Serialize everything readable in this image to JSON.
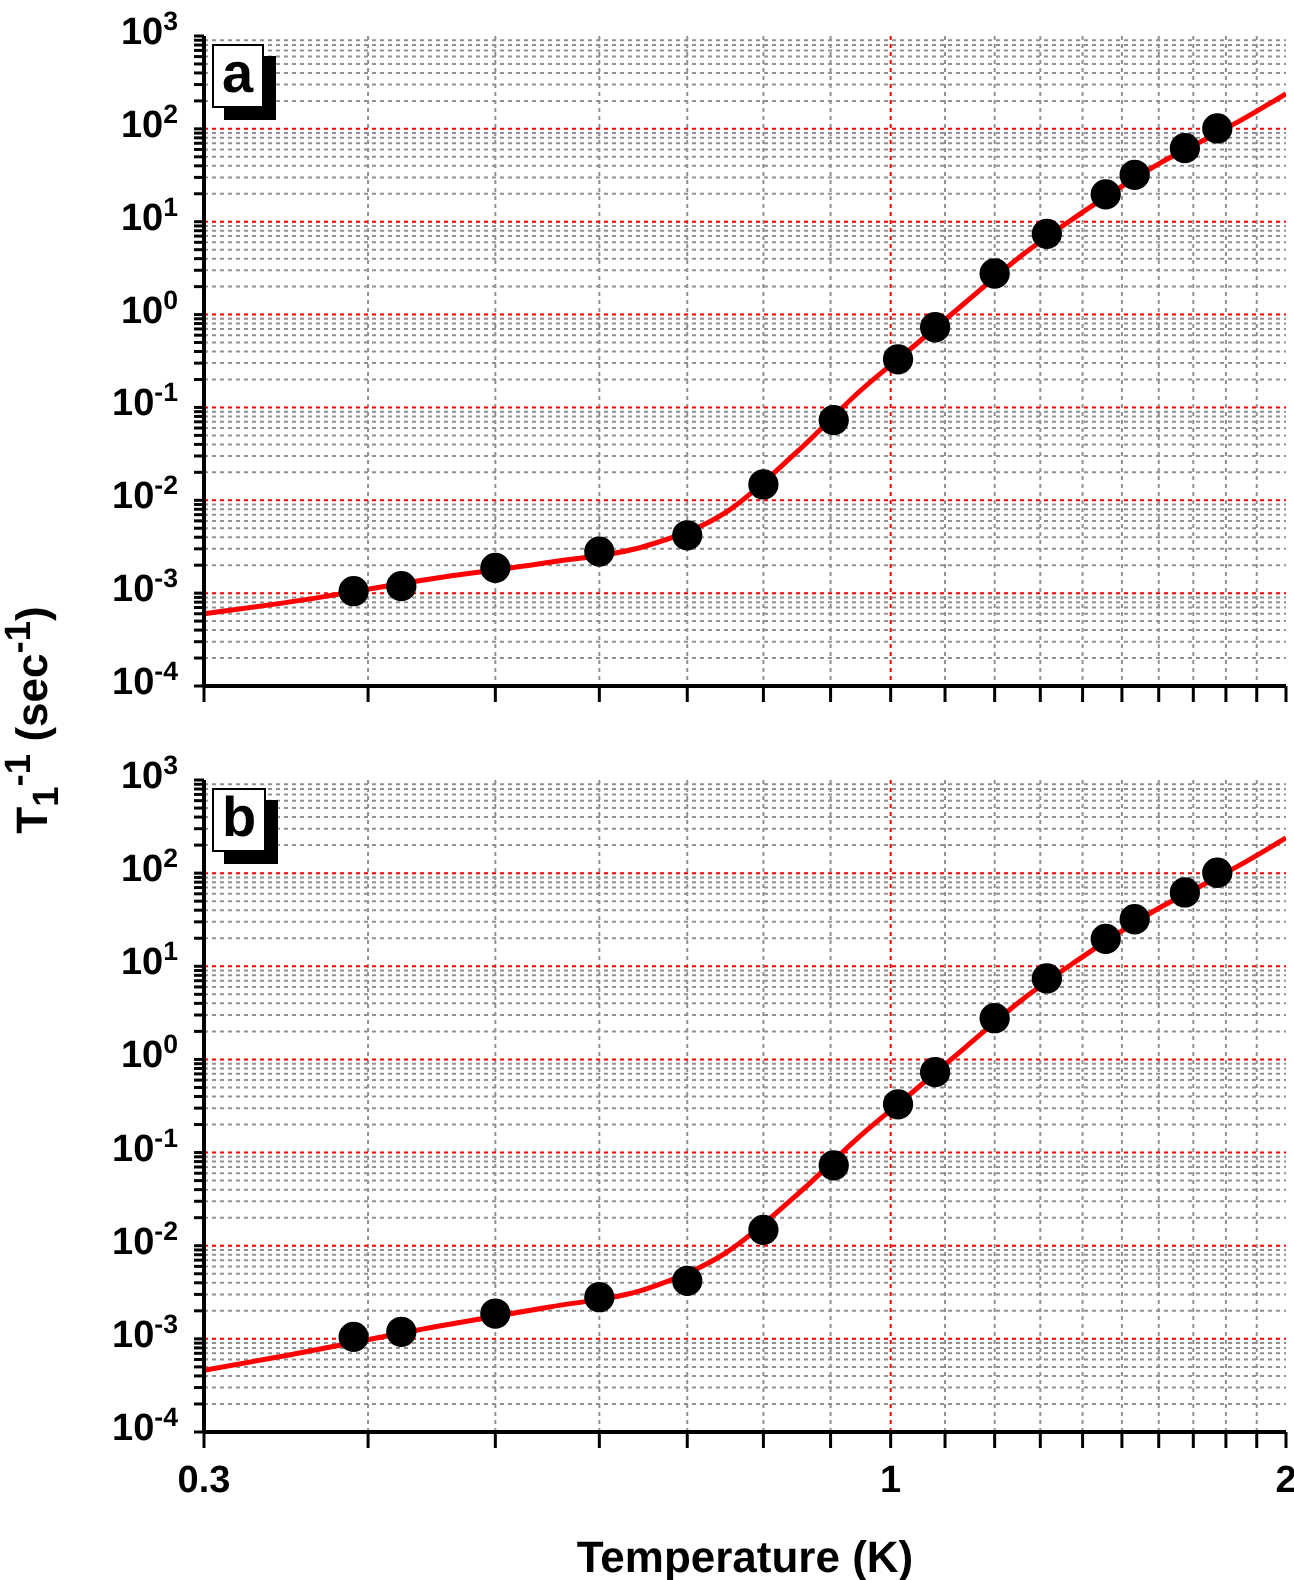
{
  "chart_data": [
    {
      "type": "scatter",
      "log": "xy",
      "grid": true,
      "tick_labels": "y",
      "annotations": [
        "a"
      ],
      "ylabel": "T$_{1}$$^{-1}$ (sec$^{-1}$)",
      "xlim": [
        0.3,
        2
      ],
      "xticks": [
        0.3,
        {
          "value": 0.4,
          "label": null
        },
        {
          "value": 0.5,
          "label": null
        },
        {
          "value": 0.6,
          "label": null
        },
        {
          "value": 0.7,
          "label": null
        },
        {
          "value": 0.8,
          "label": null
        },
        {
          "value": 0.9,
          "label": null
        },
        1,
        {
          "value": 1.1,
          "label": null
        },
        {
          "value": 1.2,
          "label": null
        },
        {
          "value": 1.3,
          "label": null
        },
        {
          "value": 1.4,
          "label": null
        },
        {
          "value": 1.5,
          "label": null
        },
        {
          "value": 1.6,
          "label": null
        },
        {
          "value": 1.7,
          "label": null
        },
        {
          "value": 1.8,
          "label": null
        },
        {
          "value": 1.9,
          "label": null
        },
        2
      ],
      "ylim": [
        0.0001,
        1000
      ],
      "yticks": [
        {
          "value": 0.0001,
          "label": "10$^{-4}$"
        },
        {
          "value": 0.0002,
          "label": null
        },
        {
          "value": 0.0003,
          "label": null
        },
        {
          "value": 0.0004,
          "label": null
        },
        {
          "value": 0.0005,
          "label": null
        },
        {
          "value": 0.0006,
          "label": null
        },
        {
          "value": 0.0007,
          "label": null
        },
        {
          "value": 0.0008,
          "label": null
        },
        {
          "value": 0.0009,
          "label": null
        },
        {
          "value": 0.001,
          "label": "10$^{-3}$"
        },
        {
          "value": 0.002,
          "label": null
        },
        {
          "value": 0.003,
          "label": null
        },
        {
          "value": 0.004,
          "label": null
        },
        {
          "value": 0.005,
          "label": null
        },
        {
          "value": 0.006,
          "label": null
        },
        {
          "value": 0.007,
          "label": null
        },
        {
          "value": 0.008,
          "label": null
        },
        {
          "value": 0.009,
          "label": null
        },
        {
          "value": 0.01,
          "label": "10$^{-2}$"
        },
        {
          "value": 0.02,
          "label": null
        },
        {
          "value": 0.03,
          "label": null
        },
        {
          "value": 0.04,
          "label": null
        },
        {
          "value": 0.05,
          "label": null
        },
        {
          "value": 0.06,
          "label": null
        },
        {
          "value": 0.07,
          "label": null
        },
        {
          "value": 0.08,
          "label": null
        },
        {
          "value": 0.09,
          "label": null
        },
        {
          "value": 0.1,
          "label": "10$^{-1}$"
        },
        {
          "value": 0.2,
          "label": null
        },
        {
          "value": 0.3,
          "label": null
        },
        {
          "value": 0.4,
          "label": null
        },
        {
          "value": 0.5,
          "label": null
        },
        {
          "value": 0.6,
          "label": null
        },
        {
          "value": 0.7,
          "label": null
        },
        {
          "value": 0.8,
          "label": null
        },
        {
          "value": 0.9,
          "label": null
        },
        {
          "value": 1,
          "label": "10$^{0}$"
        },
        {
          "value": 2,
          "label": null
        },
        {
          "value": 3,
          "label": null
        },
        {
          "value": 4,
          "label": null
        },
        {
          "value": 5,
          "label": null
        },
        {
          "value": 6,
          "label": null
        },
        {
          "value": 7,
          "label": null
        },
        {
          "value": 8,
          "label": null
        },
        {
          "value": 9,
          "label": null
        },
        {
          "value": 10,
          "label": "10$^{1}$"
        },
        {
          "value": 20,
          "label": null
        },
        {
          "value": 30,
          "label": null
        },
        {
          "value": 40,
          "label": null
        },
        {
          "value": 50,
          "label": null
        },
        {
          "value": 60,
          "label": null
        },
        {
          "value": 70,
          "label": null
        },
        {
          "value": 80,
          "label": null
        },
        {
          "value": 90,
          "label": null
        },
        {
          "value": 100,
          "label": "10$^{2}$"
        },
        {
          "value": 200,
          "label": null
        },
        {
          "value": 300,
          "label": null
        },
        {
          "value": 400,
          "label": null
        },
        {
          "value": 500,
          "label": null
        },
        {
          "value": 600,
          "label": null
        },
        {
          "value": 700,
          "label": null
        },
        {
          "value": 800,
          "label": null
        },
        {
          "value": 900,
          "label": null
        },
        {
          "value": 1000,
          "label": "10$^{3}$"
        }
      ],
      "series": [
        {
          "type": "scatter",
          "marker": "circle",
          "color": "#000000",
          "x": [
            0.39,
            0.424,
            0.5,
            0.6,
            0.7,
            0.8,
            0.905,
            1.013,
            1.081,
            1.2,
            1.315,
            1.458,
            1.534,
            1.675,
            1.773
          ],
          "values": [
            0.00105,
            0.00119,
            0.00187,
            0.0028,
            0.0042,
            0.0148,
            0.073,
            0.33,
            0.73,
            2.77,
            7.4,
            19.7,
            32,
            62,
            101
          ]
        },
        {
          "type": "line",
          "marker": "none",
          "color": "#ff0000",
          "x": [
            0.3,
            0.35,
            0.45,
            0.55,
            0.65,
            0.75,
            0.85,
            0.95,
            1.04,
            1.14,
            1.26,
            1.38,
            1.5,
            1.6,
            1.72,
            1.85,
            2.0
          ],
          "values": [
            0.0006,
            0.00081,
            0.00145,
            0.00215,
            0.0032,
            0.0075,
            0.034,
            0.155,
            0.45,
            1.35,
            4.4,
            11,
            24,
            42,
            72,
            125,
            239
          ]
        }
      ]
    },
    {
      "type": "scatter",
      "log": "xy",
      "grid": true,
      "annotations": [
        "b"
      ],
      "xlabel": "Temperature (K)",
      "xlim": [
        0.3,
        2
      ],
      "xticks": [
        0.3,
        {
          "value": 0.4,
          "label": null
        },
        {
          "value": 0.5,
          "label": null
        },
        {
          "value": 0.6,
          "label": null
        },
        {
          "value": 0.7,
          "label": null
        },
        {
          "value": 0.8,
          "label": null
        },
        {
          "value": 0.9,
          "label": null
        },
        1,
        {
          "value": 1.1,
          "label": null
        },
        {
          "value": 1.2,
          "label": null
        },
        {
          "value": 1.3,
          "label": null
        },
        {
          "value": 1.4,
          "label": null
        },
        {
          "value": 1.5,
          "label": null
        },
        {
          "value": 1.6,
          "label": null
        },
        {
          "value": 1.7,
          "label": null
        },
        {
          "value": 1.8,
          "label": null
        },
        {
          "value": 1.9,
          "label": null
        },
        2
      ],
      "ylim": [
        0.0001,
        1000
      ],
      "yticks": [
        {
          "value": 0.0001,
          "label": "10$^{-4}$"
        },
        {
          "value": 0.0002,
          "label": null
        },
        {
          "value": 0.0003,
          "label": null
        },
        {
          "value": 0.0004,
          "label": null
        },
        {
          "value": 0.0005,
          "label": null
        },
        {
          "value": 0.0006,
          "label": null
        },
        {
          "value": 0.0007,
          "label": null
        },
        {
          "value": 0.0008,
          "label": null
        },
        {
          "value": 0.0009,
          "label": null
        },
        {
          "value": 0.001,
          "label": "10$^{-3}$"
        },
        {
          "value": 0.002,
          "label": null
        },
        {
          "value": 0.003,
          "label": null
        },
        {
          "value": 0.004,
          "label": null
        },
        {
          "value": 0.005,
          "label": null
        },
        {
          "value": 0.006,
          "label": null
        },
        {
          "value": 0.007,
          "label": null
        },
        {
          "value": 0.008,
          "label": null
        },
        {
          "value": 0.009,
          "label": null
        },
        {
          "value": 0.01,
          "label": "10$^{-2}$"
        },
        {
          "value": 0.02,
          "label": null
        },
        {
          "value": 0.03,
          "label": null
        },
        {
          "value": 0.04,
          "label": null
        },
        {
          "value": 0.05,
          "label": null
        },
        {
          "value": 0.06,
          "label": null
        },
        {
          "value": 0.07,
          "label": null
        },
        {
          "value": 0.08,
          "label": null
        },
        {
          "value": 0.09,
          "label": null
        },
        {
          "value": 0.1,
          "label": "10$^{-1}$"
        },
        {
          "value": 0.2,
          "label": null
        },
        {
          "value": 0.3,
          "label": null
        },
        {
          "value": 0.4,
          "label": null
        },
        {
          "value": 0.5,
          "label": null
        },
        {
          "value": 0.6,
          "label": null
        },
        {
          "value": 0.7,
          "label": null
        },
        {
          "value": 0.8,
          "label": null
        },
        {
          "value": 0.9,
          "label": null
        },
        {
          "value": 1,
          "label": "10$^{0}$"
        },
        {
          "value": 2,
          "label": null
        },
        {
          "value": 3,
          "label": null
        },
        {
          "value": 4,
          "label": null
        },
        {
          "value": 5,
          "label": null
        },
        {
          "value": 6,
          "label": null
        },
        {
          "value": 7,
          "label": null
        },
        {
          "value": 8,
          "label": null
        },
        {
          "value": 9,
          "label": null
        },
        {
          "value": 10,
          "label": "10$^{1}$"
        },
        {
          "value": 20,
          "label": null
        },
        {
          "value": 30,
          "label": null
        },
        {
          "value": 40,
          "label": null
        },
        {
          "value": 50,
          "label": null
        },
        {
          "value": 60,
          "label": null
        },
        {
          "value": 70,
          "label": null
        },
        {
          "value": 80,
          "label": null
        },
        {
          "value": 90,
          "label": null
        },
        {
          "value": 100,
          "label": "10$^{2}$"
        },
        {
          "value": 200,
          "label": null
        },
        {
          "value": 300,
          "label": null
        },
        {
          "value": 400,
          "label": null
        },
        {
          "value": 500,
          "label": null
        },
        {
          "value": 600,
          "label": null
        },
        {
          "value": 700,
          "label": null
        },
        {
          "value": 800,
          "label": null
        },
        {
          "value": 900,
          "label": null
        },
        {
          "value": 1000,
          "label": "10$^{3}$"
        }
      ],
      "series": [
        {
          "type": "scatter",
          "marker": "circle",
          "color": "#000000",
          "x": [
            0.39,
            0.424,
            0.5,
            0.6,
            0.7,
            0.8,
            0.905,
            1.013,
            1.081,
            1.2,
            1.315,
            1.458,
            1.534,
            1.675,
            1.773
          ],
          "values": [
            0.00105,
            0.00119,
            0.00187,
            0.0028,
            0.0042,
            0.0148,
            0.073,
            0.33,
            0.73,
            2.77,
            7.4,
            19.7,
            32,
            62,
            101
          ]
        },
        {
          "type": "line",
          "marker": "none",
          "color": "#ff0000",
          "x": [
            0.3,
            0.35,
            0.45,
            0.55,
            0.65,
            0.75,
            0.85,
            0.95,
            1.04,
            1.14,
            1.26,
            1.38,
            1.5,
            1.6,
            1.72,
            1.85,
            2.0
          ],
          "values": [
            0.00046,
            0.00068,
            0.00135,
            0.0022,
            0.0034,
            0.0085,
            0.036,
            0.155,
            0.45,
            1.35,
            4.4,
            11,
            24,
            42,
            72,
            125,
            239
          ]
        }
      ]
    }
  ]
}
